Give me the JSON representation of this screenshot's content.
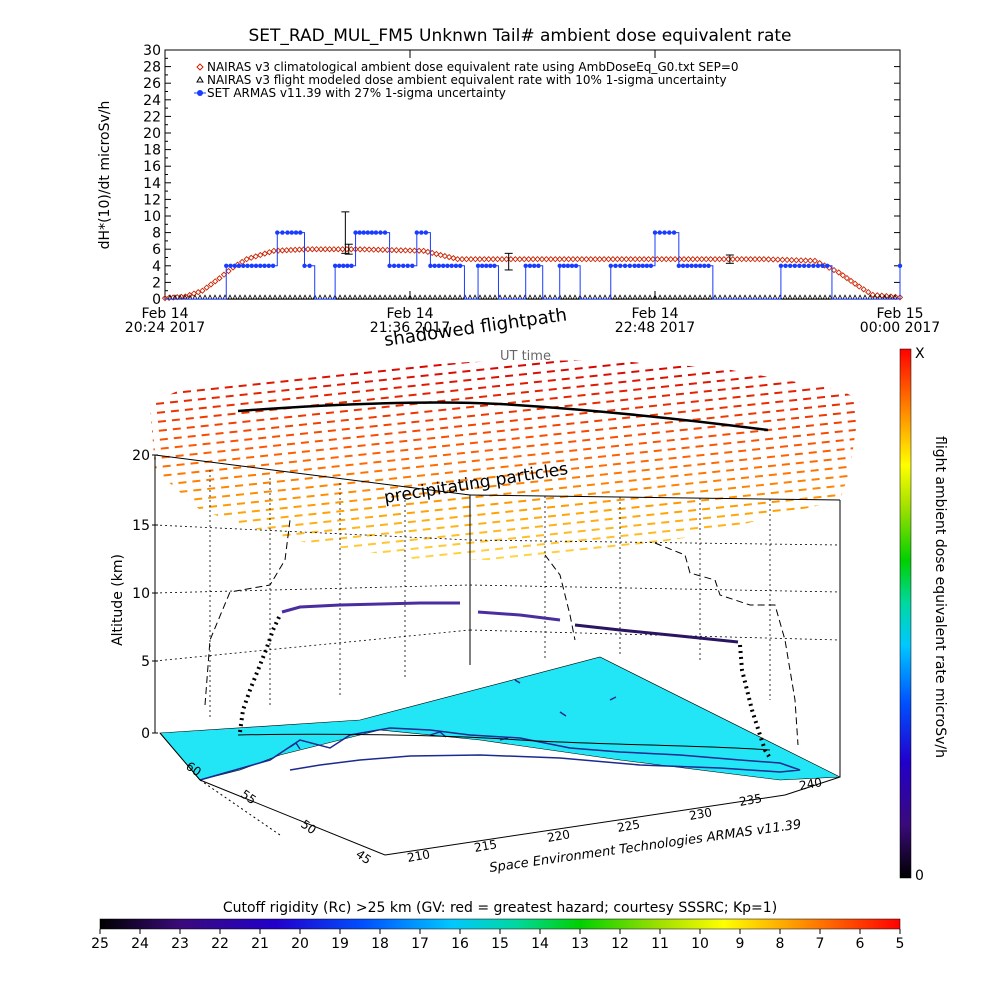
{
  "chart_data": [
    {
      "type": "line",
      "title": "SET_RAD_MUL_FM5 Unknwn Tail#  ambient dose equivalent rate",
      "ylabel": "dH*(10)/dt microSv/h",
      "ylim": [
        0,
        30
      ],
      "yticks": [
        "0",
        "2",
        "4",
        "6",
        "8",
        "10",
        "12",
        "14",
        "16",
        "18",
        "20",
        "22",
        "24",
        "26",
        "28",
        "30"
      ],
      "xlim": [
        "2017-02-14T20:24",
        "2017-02-15T00:00"
      ],
      "xticks": [
        {
          "t": "2017-02-14T20:24",
          "line1": "Feb 14",
          "line2": "20:24 2017"
        },
        {
          "t": "2017-02-14T21:36",
          "line1": "Feb 14",
          "line2": "21:36 2017"
        },
        {
          "t": "2017-02-14T22:48",
          "line1": "Feb 14",
          "line2": "22:48 2017"
        },
        {
          "t": "2017-02-15T00:00",
          "line1": "Feb 15",
          "line2": "00:00 2017"
        }
      ],
      "legend_position": "top-left",
      "series": [
        {
          "name": "NAIRAS v3 climatological ambient dose equivalent rate using AmbDoseEq_G0.txt SEP=0",
          "marker": "diamond",
          "color": "#cc2200",
          "x": [
            "2017-02-14T20:24",
            "2017-02-14T20:30",
            "2017-02-14T20:35",
            "2017-02-14T20:40",
            "2017-02-14T20:44",
            "2017-02-14T20:48",
            "2017-02-14T20:52",
            "2017-02-14T20:56",
            "2017-02-14T21:06",
            "2017-02-14T21:20",
            "2017-02-14T21:40",
            "2017-02-14T21:50",
            "2017-02-14T22:20",
            "2017-02-14T22:50",
            "2017-02-14T23:20",
            "2017-02-14T23:35",
            "2017-02-14T23:42",
            "2017-02-14T23:48",
            "2017-02-14T23:52",
            "2017-02-15T00:00"
          ],
          "y": [
            0.1,
            0.3,
            1,
            2.5,
            3.8,
            4.8,
            5.3,
            5.8,
            6.0,
            6.0,
            5.8,
            4.8,
            4.8,
            4.8,
            4.8,
            4.6,
            3.2,
            1.5,
            0.5,
            0.2
          ]
        },
        {
          "name": "NAIRAS v3 flight modeled dose ambient equivalent rate with 10% 1-sigma uncertainty",
          "marker": "triangle",
          "color": "#000000",
          "x": [
            "2017-02-14T20:24",
            "2017-02-15T00:00"
          ],
          "y": [
            0.1,
            0.1
          ],
          "errorbars": [
            {
              "t": "2017-02-14T21:17",
              "y": 8,
              "err": 2.5
            },
            {
              "t": "2017-02-14T21:18",
              "y": 6,
              "err": 0.6
            },
            {
              "t": "2017-02-14T22:05",
              "y": 4.5,
              "err": 1.0
            },
            {
              "t": "2017-02-14T23:10",
              "y": 4.8,
              "err": 0.5
            }
          ]
        },
        {
          "name": "SET ARMAS v11.39 with 27% 1-sigma uncertainty",
          "marker": "circle",
          "color": "#1a3cff",
          "x": [
            "2017-02-14T20:24",
            "2017-02-14T20:40",
            "2017-02-14T20:42",
            "2017-02-14T20:52",
            "2017-02-14T20:57",
            "2017-02-14T21:00",
            "2017-02-14T21:05",
            "2017-02-14T21:08",
            "2017-02-14T21:14",
            "2017-02-14T21:20",
            "2017-02-14T21:26",
            "2017-02-14T21:30",
            "2017-02-14T21:38",
            "2017-02-14T21:42",
            "2017-02-14T21:47",
            "2017-02-14T21:52",
            "2017-02-14T21:56",
            "2017-02-14T22:02",
            "2017-02-14T22:10",
            "2017-02-14T22:15",
            "2017-02-14T22:20",
            "2017-02-14T22:26",
            "2017-02-14T22:35",
            "2017-02-14T22:42",
            "2017-02-14T22:48",
            "2017-02-14T22:55",
            "2017-02-14T23:05",
            "2017-02-14T23:25",
            "2017-02-14T23:40",
            "2017-02-14T23:50",
            "2017-02-15T00:00"
          ],
          "y": [
            0,
            0,
            4,
            4,
            8,
            8,
            4,
            0,
            4,
            8,
            8,
            4,
            8,
            4,
            4,
            0,
            4,
            0,
            4,
            0,
            4,
            0,
            4,
            4,
            8,
            4,
            0,
            4,
            0,
            0,
            4
          ]
        }
      ]
    },
    {
      "type": "scatter",
      "title": "",
      "annotations": [
        "shadowed flightpath",
        "UT time",
        "precipitating particles",
        "Space Environment Technologies ARMAS v11.39"
      ],
      "zlabel": "Altitude (km)",
      "zticks": [
        "0",
        "5",
        "10",
        "15",
        "20"
      ],
      "lat_ticks": [
        "60",
        "55",
        "50",
        "45"
      ],
      "lon_ticks": [
        "210",
        "215",
        "220",
        "225",
        "230",
        "235",
        "240"
      ],
      "flight_path": {
        "x": [
          0,
          0.05,
          0.1,
          0.25,
          0.4,
          0.5,
          0.6,
          0.75,
          0.85,
          0.9,
          1.0
        ],
        "altitude": [
          0,
          3,
          8.5,
          10.2,
          10.5,
          9.8,
          9.5,
          9.0,
          8.7,
          5,
          0
        ]
      },
      "colorbar_right": {
        "label": "flight ambient dose equivalent rate microSv/h",
        "min_label": "0",
        "max_label": "X"
      }
    },
    {
      "type": "heatmap",
      "colorbar_bottom": {
        "title": "Cutoff rigidity (Rc) >25 km (GV: red = greatest hazard; courtesy SSSRC; Kp=1)",
        "ticks": [
          "25",
          "24",
          "23",
          "22",
          "21",
          "20",
          "19",
          "18",
          "17",
          "16",
          "15",
          "14",
          "13",
          "12",
          "11",
          "10",
          "9",
          "8",
          "7",
          "6",
          "5"
        ]
      }
    }
  ]
}
